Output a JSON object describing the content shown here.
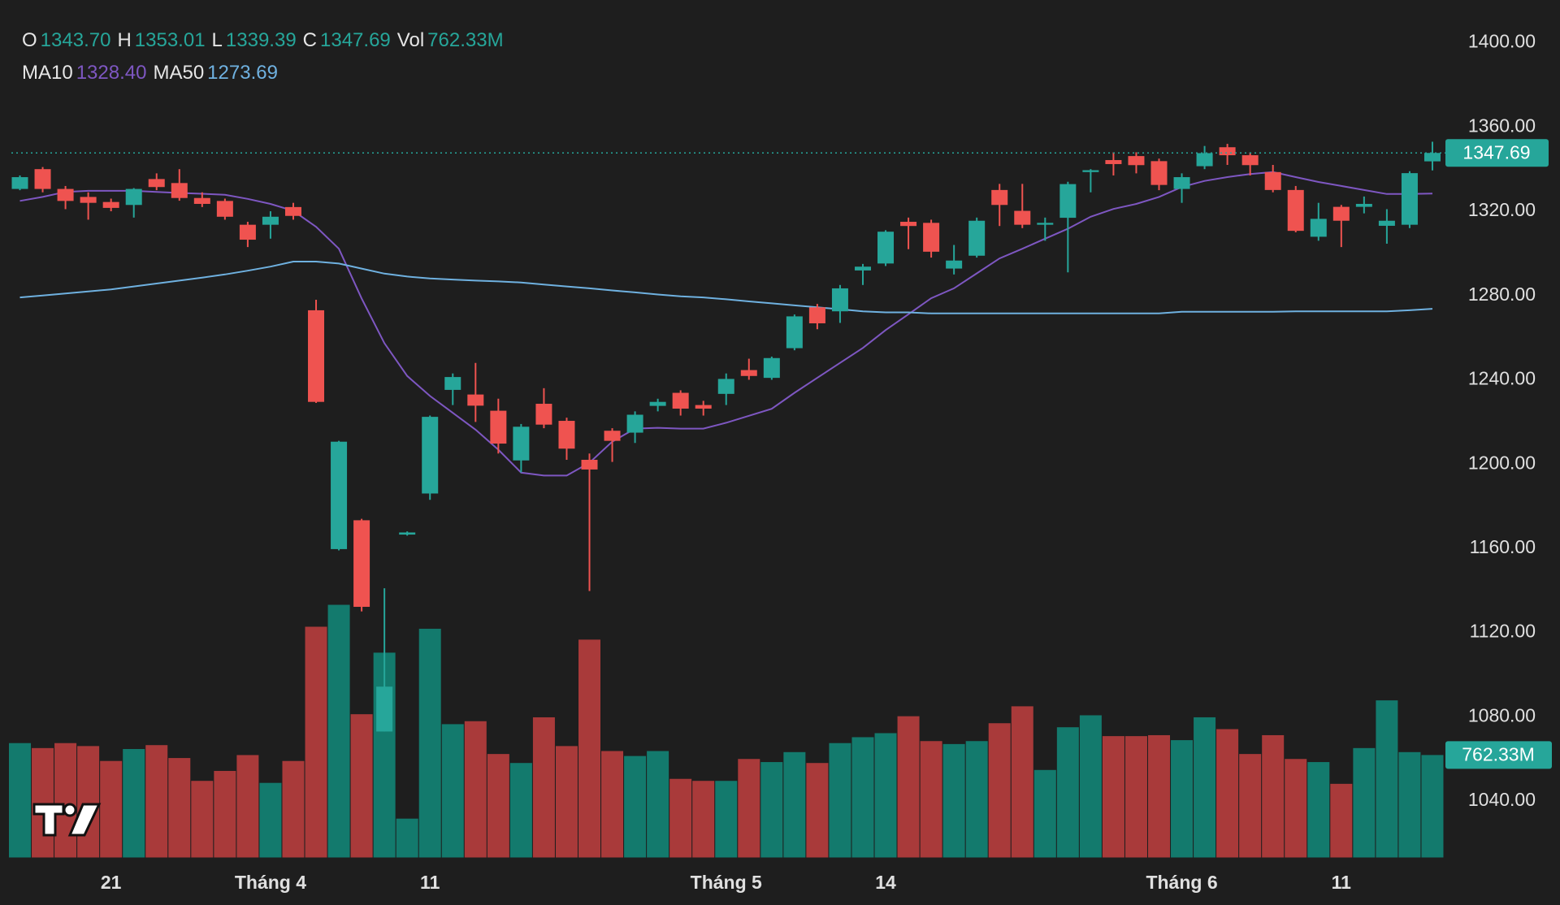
{
  "chart_data": {
    "type": "candlestick",
    "categories": [
      null,
      null,
      null,
      null,
      "21",
      null,
      null,
      null,
      null,
      null,
      null,
      "Tháng 4",
      null,
      null,
      null,
      null,
      null,
      null,
      "11",
      null,
      null,
      null,
      null,
      null,
      null,
      null,
      null,
      null,
      null,
      null,
      null,
      "Tháng 5",
      null,
      null,
      null,
      null,
      null,
      null,
      "14",
      null,
      null,
      null,
      null,
      null,
      null,
      null,
      null,
      null,
      null,
      null,
      null,
      "Tháng 6",
      null,
      null,
      null,
      null,
      null,
      null,
      "11",
      null,
      null,
      null,
      null
    ],
    "open": [
      1330.6,
      1340.0,
      1330.6,
      1326.8,
      1324.4,
      1323.0,
      1335.3,
      1333.4,
      1326.3,
      1324.9,
      1313.6,
      1313.6,
      1322.0,
      1273.0,
      1159.6,
      1173.3,
      1073.0,
      1166.5,
      1186.0,
      1235.2,
      1233.0,
      1225.3,
      1201.7,
      1228.6,
      1220.5,
      1202.0,
      1215.8,
      1214.9,
      1227.6,
      1233.8,
      1228.0,
      1233.3,
      1244.6,
      1240.9,
      1255.0,
      1274.4,
      1272.5,
      1291.9,
      1295.2,
      1315.0,
      1314.5,
      1292.8,
      1298.9,
      1330.1,
      1320.2,
      1313.6,
      1316.9,
      1338.6,
      1344.3,
      1346.2,
      1343.8,
      1330.6,
      1341.4,
      1350.4,
      1346.6,
      1338.6,
      1330.1,
      1307.9,
      1322.1,
      1322.1,
      1313.1,
      1313.6,
      1343.7
    ],
    "high": [
      1337,
      1341,
      1332,
      1329,
      1326,
      1331,
      1338,
      1340,
      1329,
      1326,
      1315,
      1320,
      1324,
      1278,
      1211,
      1174,
      1141,
      1168,
      1223,
      1243,
      1248,
      1231,
      1219,
      1236,
      1222,
      1205,
      1217,
      1225,
      1231,
      1235,
      1230,
      1243,
      1250,
      1251,
      1271,
      1276,
      1285,
      1295,
      1311,
      1317,
      1316,
      1304,
      1317,
      1333,
      1333,
      1317,
      1334,
      1340,
      1348,
      1348,
      1345,
      1338,
      1351,
      1352,
      1348,
      1342,
      1332,
      1324,
      1323,
      1327,
      1321,
      1339,
      1353.01
    ],
    "low": [
      1330,
      1329,
      1321,
      1316,
      1320,
      1317,
      1330,
      1325,
      1322,
      1316,
      1303,
      1307,
      1316,
      1229,
      1159,
      1130,
      1073,
      1166,
      1183,
      1228,
      1220,
      1205,
      1196,
      1217,
      1202,
      1139.7,
      1201,
      1210,
      1225,
      1223,
      1223,
      1228,
      1240,
      1240,
      1254,
      1264,
      1267,
      1285,
      1294,
      1302,
      1298,
      1290,
      1298,
      1313,
      1312,
      1306,
      1291,
      1329,
      1337,
      1338,
      1330,
      1324,
      1340,
      1342,
      1337,
      1329,
      1310,
      1306,
      1303,
      1319,
      1304.6,
      1312,
      1339.39
    ],
    "close": [
      1336.2,
      1330.6,
      1324.9,
      1324.0,
      1321.6,
      1330.6,
      1331.5,
      1326.3,
      1323.5,
      1317.4,
      1306.5,
      1317.4,
      1317.8,
      1229.5,
      1210.6,
      1132.2,
      1094.3,
      1167.5,
      1222.4,
      1241.3,
      1227.7,
      1209.7,
      1217.7,
      1218.7,
      1207.3,
      1197.4,
      1211.0,
      1223.4,
      1229.5,
      1226.3,
      1226.3,
      1240.4,
      1241.8,
      1250.3,
      1270.1,
      1266.8,
      1283.4,
      1293.7,
      1310.3,
      1313.0,
      1300.8,
      1296.6,
      1315.5,
      1323.0,
      1313.6,
      1314.5,
      1332.9,
      1339.5,
      1342.4,
      1341.9,
      1332.5,
      1336.2,
      1347.6,
      1346.6,
      1341.9,
      1330.1,
      1310.7,
      1316.4,
      1315.5,
      1323.5,
      1315.5,
      1338.1,
      1347.69
    ],
    "up_color": "#26a69a",
    "down_color": "#ef5350",
    "volume": {
      "name": "Vol",
      "up_color": "#137a6d",
      "down_color": "#a93a3a",
      "values": [
        851,
        814,
        851,
        829,
        718,
        807,
        836,
        740,
        570,
        644,
        762,
        555,
        718,
        1717,
        1880,
        1066,
        1524,
        289,
        1702,
        992,
        1014,
        770,
        703,
        1043,
        829,
        1621,
        792,
        755,
        792,
        585,
        570,
        570,
        733,
        710,
        784,
        703,
        851,
        895,
        925,
        1051,
        866,
        844,
        866,
        999,
        1125,
        651,
        969,
        1058,
        903,
        903,
        910,
        873,
        1043,
        955,
        770,
        910,
        733,
        710,
        548,
        814,
        1169,
        784,
        762.33
      ]
    },
    "ma": [
      {
        "name": "MA10",
        "color": "#7e57c2",
        "value_label": "1328.40",
        "values": [
          1324.9,
          1326.8,
          1329.2,
          1329.7,
          1329.7,
          1329.7,
          1329.2,
          1328.7,
          1328.3,
          1327.8,
          1325.9,
          1323.5,
          1320.2,
          1312.6,
          1302.2,
          1278.6,
          1257.4,
          1241.8,
          1232.3,
          1224.3,
          1216.3,
          1206.8,
          1195.9,
          1194.5,
          1194.5,
          1200.6,
          1210.6,
          1216.8,
          1217.2,
          1216.8,
          1216.8,
          1219.6,
          1222.9,
          1226.2,
          1233.8,
          1240.9,
          1248.0,
          1255.1,
          1263.6,
          1271.1,
          1278.7,
          1283.4,
          1290.5,
          1297.6,
          1302.2,
          1307.0,
          1311.7,
          1317.4,
          1321.1,
          1323.5,
          1326.8,
          1331.5,
          1334.4,
          1336.2,
          1337.7,
          1338.6,
          1336.2,
          1333.9,
          1332.0,
          1330.1,
          1328.2,
          1328.2,
          1328.4
        ]
      },
      {
        "name": "MA50",
        "color": "#6fb1e0",
        "value_label": "1273.69",
        "values": [
          1279.1,
          1280.0,
          1281.0,
          1281.9,
          1282.9,
          1284.3,
          1285.7,
          1287.1,
          1288.5,
          1290.0,
          1291.8,
          1293.7,
          1296.1,
          1296.1,
          1295.2,
          1292.8,
          1290.4,
          1289.0,
          1288.1,
          1287.6,
          1287.1,
          1286.7,
          1286.2,
          1285.2,
          1284.3,
          1283.4,
          1282.4,
          1281.5,
          1280.5,
          1279.6,
          1279.1,
          1278.2,
          1277.2,
          1276.3,
          1275.3,
          1274.4,
          1273.5,
          1272.5,
          1272.0,
          1272.0,
          1271.5,
          1271.5,
          1271.5,
          1271.5,
          1271.5,
          1271.5,
          1271.5,
          1271.5,
          1271.5,
          1271.5,
          1271.5,
          1272.3,
          1272.3,
          1272.3,
          1272.3,
          1272.3,
          1272.5,
          1272.5,
          1272.5,
          1272.5,
          1272.5,
          1273.0,
          1273.69
        ]
      }
    ],
    "ohlc_legend": [
      {
        "label": "O",
        "value": "1343.70"
      },
      {
        "label": "H",
        "value": "1353.01"
      },
      {
        "label": "L",
        "value": "1339.39"
      },
      {
        "label": "C",
        "value": "1347.69"
      },
      {
        "label": "Vol",
        "value": "762.33M"
      }
    ],
    "last_price_label": "1347.69",
    "last_volume_label": "762.33M",
    "ylim": [
      1013.2,
      1420.3
    ],
    "yticks": [
      {
        "value": 1040,
        "label": "1040.00"
      },
      {
        "value": 1080,
        "label": "1080.00"
      },
      {
        "value": 1120,
        "label": "1120.00"
      },
      {
        "value": 1160,
        "label": "1160.00"
      },
      {
        "value": 1200,
        "label": "1200.00"
      },
      {
        "value": 1240,
        "label": "1240.00"
      },
      {
        "value": 1280,
        "label": "1280.00"
      },
      {
        "value": 1320,
        "label": "1320.00"
      },
      {
        "value": 1360,
        "label": "1360.00"
      },
      {
        "value": 1400,
        "label": "1400.00"
      }
    ]
  }
}
